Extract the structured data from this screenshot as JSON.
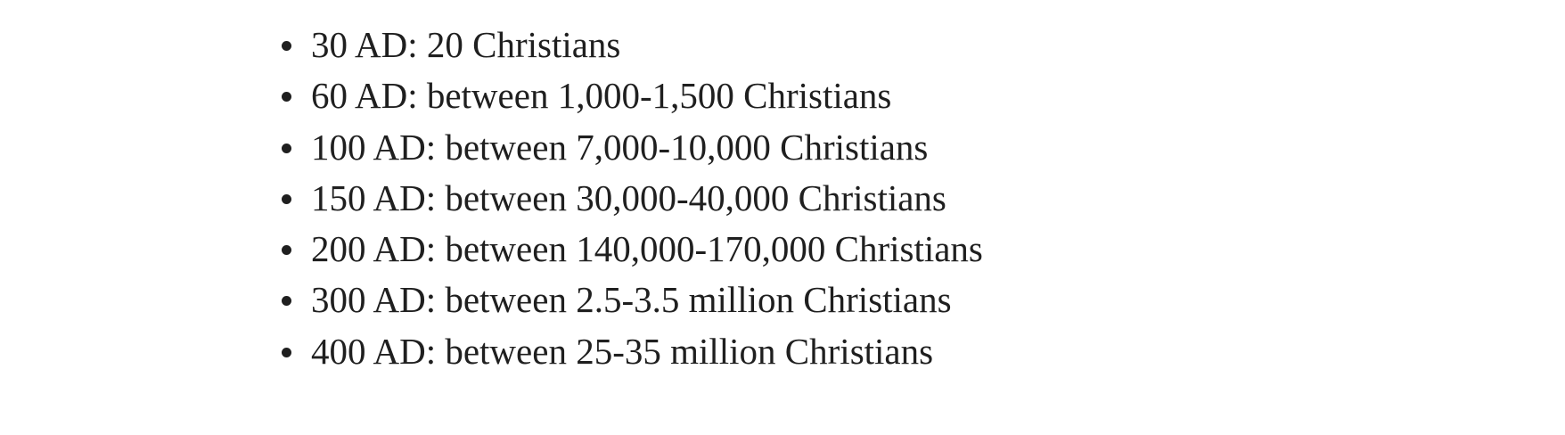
{
  "list": {
    "items": [
      "30 AD: 20 Christians",
      "60 AD: between 1,000-1,500 Christians",
      "100 AD: between 7,000-10,000 Christians",
      "150 AD: between 30,000-40,000 Christians",
      "200 AD: between 140,000-170,000 Christians",
      "300 AD: between 2.5-3.5 million Christians",
      "400 AD: between 25-35 million Christians"
    ]
  }
}
